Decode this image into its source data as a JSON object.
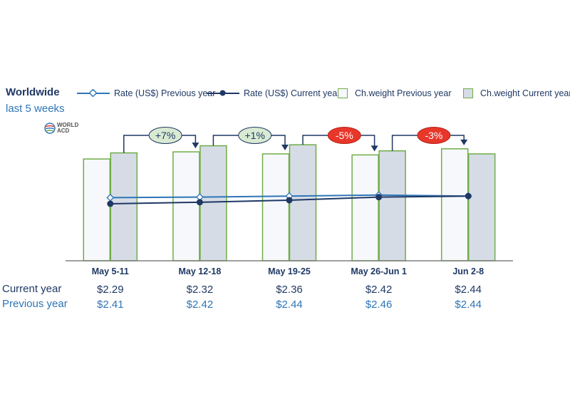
{
  "header": {
    "title": "Worldwide",
    "subtitle": "last 5 weeks"
  },
  "logo": {
    "line1": "WORLD",
    "line2": "ACD",
    "icon": "globe-icon"
  },
  "legend": {
    "rate_prev": "Rate (US$) Previous year",
    "rate_cur": "Rate (US$) Current year",
    "cw_prev": "Ch.weight Previous year",
    "cw_cur": "Ch.weight Current year"
  },
  "table": {
    "current_label": "Current year",
    "previous_label": "Previous year"
  },
  "colors": {
    "rate_prev": "#2e75b6",
    "rate_cur": "#1f3864",
    "bar_border": "#70ad47",
    "bar_prev_fill": "#f6f8fc",
    "bar_cur_fill": "#d6dce6",
    "badge_positive": "#d9ead3",
    "badge_negative": "#e8372a"
  },
  "chart_data": {
    "type": "bar",
    "categories": [
      "May 5-11",
      "May 12-18",
      "May 19-25",
      "May 26-Jun 1",
      "Jun 2-8"
    ],
    "series": [
      {
        "name": "Ch.weight Previous year",
        "type": "bar",
        "values": [
          100,
          107,
          105,
          104,
          110
        ]
      },
      {
        "name": "Ch.weight Current year",
        "type": "bar",
        "values": [
          106,
          113,
          114,
          108,
          105
        ]
      },
      {
        "name": "Rate (US$) Previous year",
        "type": "line",
        "values": [
          2.41,
          2.42,
          2.44,
          2.46,
          2.44
        ]
      },
      {
        "name": "Rate (US$) Current year",
        "type": "line",
        "values": [
          2.29,
          2.32,
          2.36,
          2.42,
          2.44
        ]
      }
    ],
    "rate_labels": {
      "current": [
        "$2.29",
        "$2.32",
        "$2.36",
        "$2.42",
        "$2.44"
      ],
      "previous": [
        "$2.41",
        "$2.42",
        "$2.44",
        "$2.46",
        "$2.44"
      ]
    },
    "changes": [
      "+7%",
      "+1%",
      "-5%",
      "-3%"
    ],
    "ylim": [
      0,
      140
    ],
    "grid": false,
    "legend_position": "top"
  }
}
